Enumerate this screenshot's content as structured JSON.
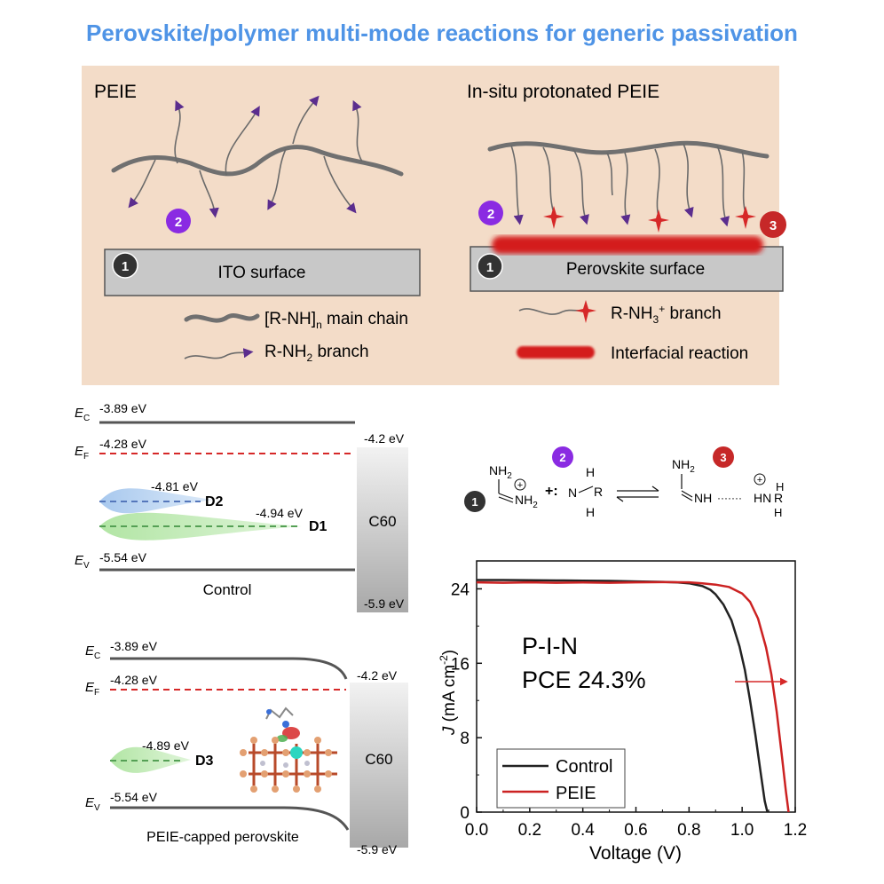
{
  "title": "Perovskite/polymer multi-mode reactions for generic passivation",
  "colors": {
    "title_blue": "#4f94e6",
    "panel_bg": "#f3dcc8",
    "surface_gray": "#c8c8c8",
    "branch_purple": "#5b2d8e",
    "protonated_red": "#d62828",
    "badge_dark": "#333333",
    "badge_purple": "#8a2be2",
    "badge_red": "#c62828",
    "control_line": "#222222",
    "peie_line": "#cc2222"
  },
  "top_panel": {
    "left": {
      "heading": "PEIE",
      "surface_label": "ITO surface",
      "badge_1": "1",
      "badge_2": "2"
    },
    "right": {
      "heading": "In-situ protonated PEIE",
      "surface_label": "Perovskite surface",
      "badge_1": "1",
      "badge_2": "2",
      "badge_3": "3"
    },
    "legend": {
      "main_chain": "main chain",
      "main_chain_formula": "[R-NH]",
      "main_chain_sub": "n",
      "nh2_branch_pre": "R-NH",
      "nh2_branch_sub": "2",
      "nh2_branch_post": " branch",
      "nh3_branch_pre": "R-NH",
      "nh3_branch_sub": "3",
      "nh3_branch_sup": "+",
      "nh3_branch_post": " branch",
      "interfacial": "Interfacial reaction"
    }
  },
  "band_control": {
    "ec_label": "E",
    "ec_sub": "C",
    "ec_value": "-3.89 eV",
    "ef_label": "E",
    "ef_sub": "F",
    "ef_value": "-4.28 eV",
    "ev_label": "E",
    "ev_sub": "V",
    "ev_value": "-5.54 eV",
    "d2_value": "-4.81 eV",
    "d2_label": "D2",
    "d1_value": "-4.94 eV",
    "d1_label": "D1",
    "c60_label": "C60",
    "c60_top": "-4.2 eV",
    "c60_bottom": "-5.9 eV",
    "caption": "Control"
  },
  "band_peie": {
    "ec_label": "E",
    "ec_sub": "C",
    "ec_value": "-3.89 eV",
    "ef_label": "E",
    "ef_sub": "F",
    "ef_value": "-4.28 eV",
    "ev_label": "E",
    "ev_sub": "V",
    "ev_value": "-5.54 eV",
    "d3_value": "-4.89 eV",
    "d3_label": "D3",
    "c60_label": "C60",
    "c60_top": "-4.2 eV",
    "c60_bottom": "-5.9 eV",
    "caption": "PEIE-capped perovskite"
  },
  "reaction": {
    "badge_1": "1",
    "badge_2": "2",
    "badge_3": "3",
    "fa_top": "NH",
    "fa_top_sub": "2",
    "fa_right": "NH",
    "fa_right_sub": "2",
    "plus_colon": "+:",
    "amine_n": "N",
    "amine_h_top": "H",
    "amine_r": "R",
    "amine_h_bot": "H",
    "prod_top": "NH",
    "prod_top_sub": "2",
    "prod_nh": "NH",
    "prod_dots": "·······",
    "prod_hn": "HN",
    "prod_h1": "H",
    "prod_r": "R",
    "prod_h2": "H",
    "plus_sign": "+"
  },
  "chart_data": {
    "type": "line",
    "xlabel": "Voltage (V)",
    "ylabel_main": "J",
    "ylabel_rest": " (mA cm",
    "ylabel_sup": "-2",
    "ylabel_close": ")",
    "xlim": [
      0.0,
      1.2
    ],
    "ylim": [
      0,
      27
    ],
    "xticks": [
      "0.0",
      "0.2",
      "0.4",
      "0.6",
      "0.8",
      "1.0",
      "1.2"
    ],
    "xtick_values": [
      0.0,
      0.2,
      0.4,
      0.6,
      0.8,
      1.0,
      1.2
    ],
    "yticks": [
      "0",
      "8",
      "16",
      "24"
    ],
    "ytick_values": [
      0,
      8,
      16,
      24
    ],
    "annotation_1": "P-I-N",
    "annotation_2": "PCE 24.3%",
    "legend_position": "bottom-left",
    "series": [
      {
        "name": "Control",
        "color": "#222222",
        "x": [
          0.0,
          0.1,
          0.2,
          0.3,
          0.4,
          0.5,
          0.6,
          0.7,
          0.75,
          0.8,
          0.85,
          0.88,
          0.9,
          0.93,
          0.96,
          0.99,
          1.01,
          1.03,
          1.05,
          1.07,
          1.085,
          1.095
        ],
        "y": [
          24.95,
          24.95,
          24.93,
          24.9,
          24.88,
          24.85,
          24.8,
          24.75,
          24.7,
          24.6,
          24.3,
          23.9,
          23.4,
          22.3,
          20.6,
          17.8,
          15.3,
          12.0,
          8.3,
          4.2,
          1.2,
          0
        ]
      },
      {
        "name": "PEIE",
        "color": "#cc2222",
        "x": [
          0.0,
          0.1,
          0.2,
          0.3,
          0.4,
          0.5,
          0.6,
          0.7,
          0.8,
          0.85,
          0.9,
          0.95,
          1.0,
          1.03,
          1.06,
          1.09,
          1.11,
          1.13,
          1.15,
          1.165,
          1.175
        ],
        "y": [
          24.7,
          24.65,
          24.7,
          24.65,
          24.68,
          24.65,
          24.7,
          24.72,
          24.7,
          24.6,
          24.45,
          24.2,
          23.5,
          22.6,
          20.8,
          17.7,
          14.8,
          10.8,
          6.0,
          2.2,
          0
        ]
      }
    ]
  }
}
